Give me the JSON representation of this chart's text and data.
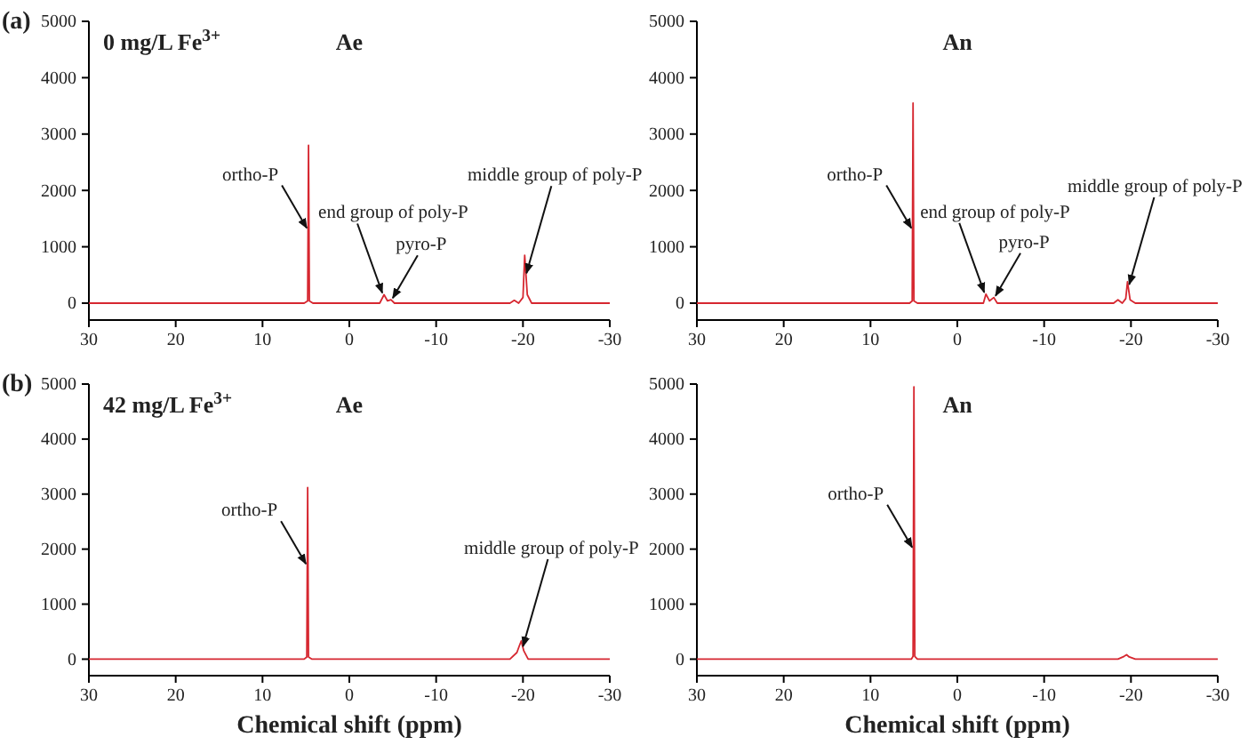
{
  "chart_data": [
    {
      "type": "line",
      "title": "Ae",
      "subtitle": "0 mg/L Fe$^{3+}$",
      "annotations": [
        "(a)",
        {
          "text": "ortho-P",
          "x": 4.7,
          "y": 1300
        },
        {
          "text": "end group of poly-P",
          "x": -4,
          "y": 150
        },
        {
          "text": "pyro-P",
          "x": -4.8,
          "y": 60
        },
        {
          "text": "middle group of poly-P",
          "x": -20.2,
          "y": 500
        }
      ],
      "series": [
        {
          "color": "#d62730",
          "x": [
            30,
            20,
            10,
            5.2,
            4.8,
            4.7,
            4.6,
            4.2,
            0,
            -3.5,
            -4,
            -4.4,
            -4.8,
            -5.2,
            -10,
            -18.5,
            -19,
            -19.5,
            -20,
            -20.2,
            -20.5,
            -21,
            -30
          ],
          "values": [
            0,
            0,
            0,
            0,
            40,
            2800,
            40,
            0,
            0,
            0,
            150,
            40,
            60,
            0,
            0,
            0,
            50,
            0,
            100,
            850,
            150,
            0,
            0
          ]
        }
      ],
      "xlim": [
        30,
        -30
      ],
      "xticks": [
        30,
        20,
        10,
        0,
        -10,
        -20,
        -30
      ],
      "ylim": [
        -300,
        5000
      ],
      "yticks": [
        0,
        1000,
        2000,
        3000,
        4000,
        5000
      ],
      "grid": false
    },
    {
      "type": "line",
      "title": "An",
      "annotations": [
        {
          "text": "ortho-P",
          "x": 5.1,
          "y": 1300
        },
        {
          "text": "end group of poly-P",
          "x": -3.3,
          "y": 160
        },
        {
          "text": "pyro-P",
          "x": -4.2,
          "y": 100
        },
        {
          "text": "middle group of poly-P",
          "x": -19.6,
          "y": 300
        }
      ],
      "series": [
        {
          "color": "#d62730",
          "x": [
            30,
            20,
            10,
            5.5,
            5.2,
            5.1,
            5,
            4.6,
            0,
            -3,
            -3.3,
            -3.7,
            -4.2,
            -4.6,
            -10,
            -18,
            -18.5,
            -19,
            -19.4,
            -19.6,
            -19.9,
            -20.5,
            -30
          ],
          "values": [
            0,
            0,
            0,
            0,
            40,
            3550,
            40,
            0,
            0,
            0,
            160,
            40,
            100,
            0,
            0,
            0,
            60,
            0,
            80,
            380,
            60,
            0,
            0
          ]
        }
      ],
      "xlim": [
        30,
        -30
      ],
      "xticks": [
        30,
        20,
        10,
        0,
        -10,
        -20,
        -30
      ],
      "ylim": [
        -300,
        5000
      ],
      "yticks": [
        0,
        1000,
        2000,
        3000,
        4000,
        5000
      ],
      "grid": false
    },
    {
      "type": "line",
      "title": "Ae",
      "subtitle": "42 mg/L Fe$^{3+}$",
      "xlabel": "Chemical shift (ppm)",
      "annotations": [
        "(b)",
        {
          "text": "ortho-P",
          "x": 4.8,
          "y": 1700
        },
        {
          "text": "middle group of poly-P",
          "x": -19.8,
          "y": 200
        }
      ],
      "series": [
        {
          "color": "#d62730",
          "x": [
            30,
            20,
            10,
            5.2,
            4.9,
            4.8,
            4.7,
            4.3,
            0,
            -10,
            -18.5,
            -19.3,
            -19.6,
            -19.8,
            -20.1,
            -20.6,
            -30
          ],
          "values": [
            0,
            0,
            0,
            0,
            40,
            3120,
            40,
            0,
            0,
            0,
            0,
            120,
            250,
            330,
            150,
            0,
            0
          ]
        }
      ],
      "xlim": [
        30,
        -30
      ],
      "xticks": [
        30,
        20,
        10,
        0,
        -10,
        -20,
        -30
      ],
      "ylim": [
        -300,
        5000
      ],
      "yticks": [
        0,
        1000,
        2000,
        3000,
        4000,
        5000
      ],
      "grid": false
    },
    {
      "type": "line",
      "title": "An",
      "xlabel": "Chemical shift (ppm)",
      "annotations": [
        {
          "text": "ortho-P",
          "x": 5,
          "y": 2000
        }
      ],
      "series": [
        {
          "color": "#d62730",
          "x": [
            30,
            20,
            10,
            5.3,
            5.1,
            5,
            4.9,
            4.6,
            0,
            -10,
            -18.5,
            -19.2,
            -19.5,
            -19.8,
            -20.5,
            -30
          ],
          "values": [
            0,
            0,
            0,
            0,
            50,
            4950,
            50,
            0,
            0,
            0,
            0,
            50,
            80,
            40,
            0,
            0
          ]
        }
      ],
      "xlim": [
        30,
        -30
      ],
      "xticks": [
        30,
        20,
        10,
        0,
        -10,
        -20,
        -30
      ],
      "ylim": [
        -300,
        5000
      ],
      "yticks": [
        0,
        1000,
        2000,
        3000,
        4000,
        5000
      ],
      "grid": false
    }
  ]
}
